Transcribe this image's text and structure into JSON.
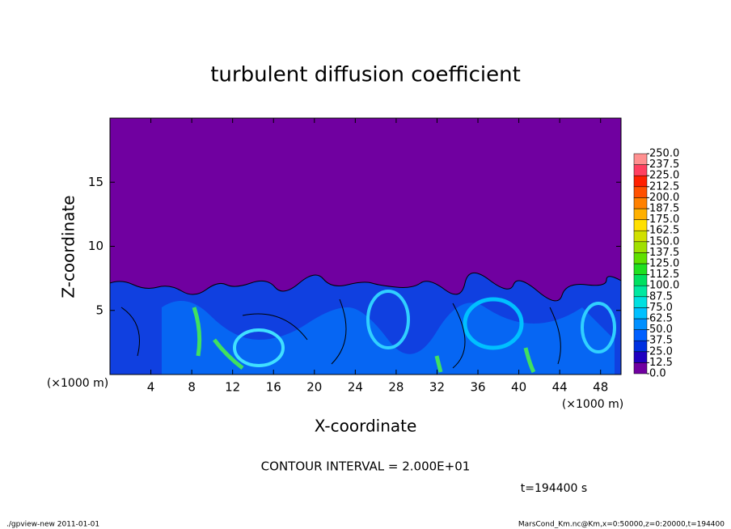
{
  "chart_data": {
    "type": "contour",
    "title": "turbulent diffusion coefficient",
    "xlabel": "X-coordinate",
    "ylabel": "Z-coordinate",
    "xunit_left": "(×1000 m)",
    "xunit_right": "(×1000 m)",
    "xlim": [
      0,
      50
    ],
    "xticks": [
      4,
      8,
      12,
      16,
      20,
      24,
      28,
      32,
      36,
      40,
      44,
      48
    ],
    "ylim": [
      0,
      20
    ],
    "yticks": [
      5,
      10,
      15
    ],
    "colorbar": {
      "levels": [
        {
          "value": 0,
          "label": "0.0"
        },
        {
          "value": 12.5,
          "label": "12.5"
        },
        {
          "value": 25,
          "label": "25.0"
        },
        {
          "value": 37.5,
          "label": "37.5"
        },
        {
          "value": 50,
          "label": "50.0"
        },
        {
          "value": 62.5,
          "label": "62.5"
        },
        {
          "value": 75,
          "label": "75.0"
        },
        {
          "value": 87.5,
          "label": "87.5"
        },
        {
          "value": 100,
          "label": "100.0"
        },
        {
          "value": 112.5,
          "label": "112.5"
        },
        {
          "value": 125,
          "label": "125.0"
        },
        {
          "value": 137.5,
          "label": "137.5"
        },
        {
          "value": 150,
          "label": "150.0"
        },
        {
          "value": 162.5,
          "label": "162.5"
        },
        {
          "value": 175,
          "label": "175.0"
        },
        {
          "value": 187.5,
          "label": "187.5"
        },
        {
          "value": 200,
          "label": "200.0"
        },
        {
          "value": 212.5,
          "label": "212.5"
        },
        {
          "value": 225,
          "label": "225.0"
        },
        {
          "value": 237.5,
          "label": "237.5"
        },
        {
          "value": 250,
          "label": "250.0"
        }
      ],
      "colors": [
        "#7000a0",
        "#2000c0",
        "#0030e0",
        "#0060ff",
        "#0090ff",
        "#00c0ff",
        "#00e0e0",
        "#00e8a0",
        "#00e060",
        "#20e020",
        "#60e000",
        "#a0e000",
        "#d0e000",
        "#ffe000",
        "#ffb000",
        "#ff8000",
        "#ff5000",
        "#ff2000",
        "#ff4060",
        "#ff9090"
      ]
    },
    "annotations": {
      "contour_interval": "CONTOUR INTERVAL = 2.000E+01",
      "time": "t=194400 s",
      "footer_left": "./gpview-new  2011-01-01",
      "footer_right": "MarsCond_Km.nc@Km,x=0:50000,z=0:20000,t=194400"
    }
  }
}
